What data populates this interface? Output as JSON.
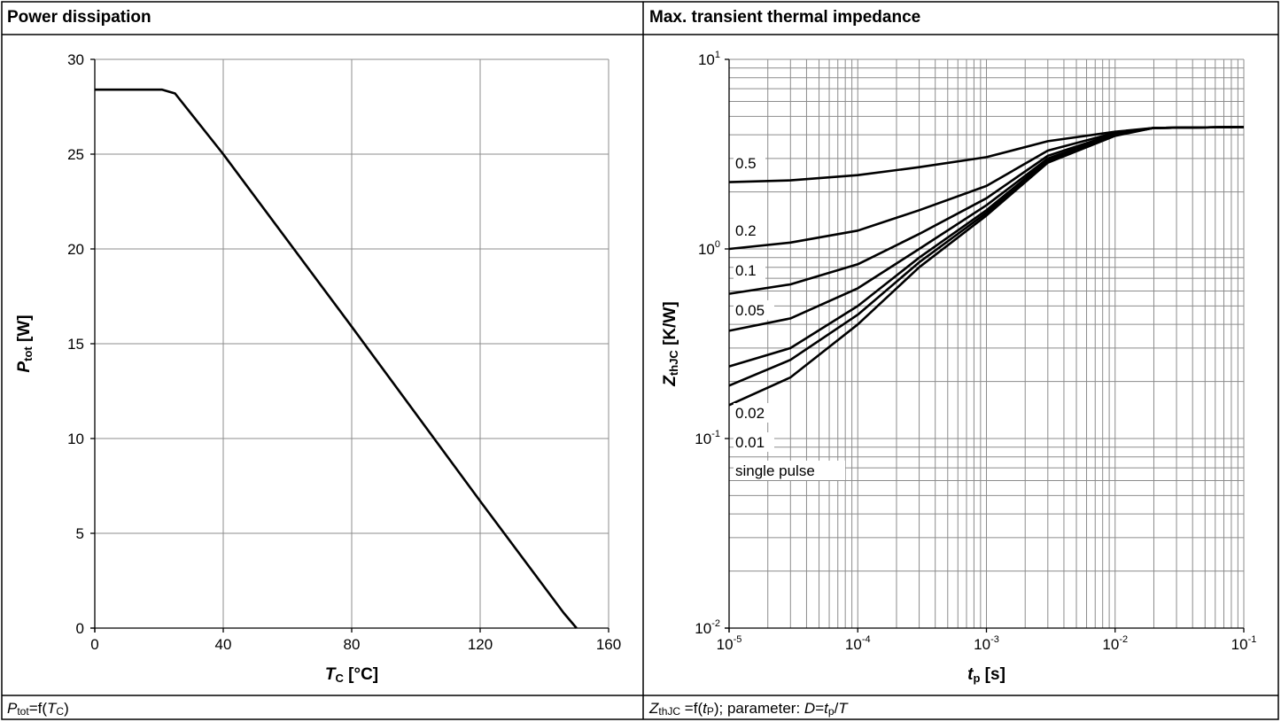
{
  "panels": {
    "left": {
      "title": "Power dissipation",
      "caption": {
        "p": "P",
        "tot": "tot",
        "mid": "=f(",
        "t": "T",
        "c": "C",
        "end": ")"
      }
    },
    "right": {
      "title": "Max. transient thermal impedance",
      "caption": {
        "z": "Z",
        "thjc": "thJC",
        "mid": " =f(",
        "t": "t",
        "p": "P",
        "param": "); parameter: ",
        "d": "D",
        "eq": "=",
        "t2": "t",
        "p2": "p",
        "slash": "/",
        "T": "T"
      }
    }
  },
  "chart_data": [
    {
      "type": "line",
      "title": "Power dissipation",
      "xlabel": {
        "main": "T",
        "sub": "C",
        "unit": " [°C]"
      },
      "ylabel": {
        "main": "P",
        "sub": "tot",
        "unit": " [W]"
      },
      "xlim": [
        0,
        160
      ],
      "ylim": [
        0,
        30
      ],
      "xticks": [
        0,
        40,
        80,
        120,
        160
      ],
      "yticks": [
        0,
        5,
        10,
        15,
        20,
        25,
        30
      ],
      "grid": true,
      "series": [
        {
          "x": [
            0,
            21,
            25,
            40,
            80,
            120,
            146,
            150
          ],
          "y": [
            28.4,
            28.4,
            28.2,
            25,
            15.9,
            6.7,
            0.8,
            0
          ]
        }
      ]
    },
    {
      "type": "line",
      "title": "Max. transient thermal impedance",
      "xscale": "log",
      "yscale": "log",
      "xlabel": {
        "main": "t",
        "sub": "p",
        "unit": " [s]"
      },
      "ylabel": {
        "main": "Z",
        "sub": "thJC",
        "unit": " [K/W]"
      },
      "xlim": [
        1e-05,
        0.1
      ],
      "ylim": [
        0.01,
        10
      ],
      "xticks": [
        {
          "v": 1e-05,
          "base": "10",
          "exp": "-5"
        },
        {
          "v": 0.0001,
          "base": "10",
          "exp": "-4"
        },
        {
          "v": 0.001,
          "base": "10",
          "exp": "-3"
        },
        {
          "v": 0.01,
          "base": "10",
          "exp": "-2"
        },
        {
          "v": 0.1,
          "base": "10",
          "exp": "-1"
        }
      ],
      "yticks": [
        {
          "v": 0.01,
          "base": "10",
          "exp": "-2"
        },
        {
          "v": 0.1,
          "base": "10",
          "exp": "-1"
        },
        {
          "v": 1,
          "base": "10",
          "exp": "0"
        },
        {
          "v": 10,
          "base": "10",
          "exp": "1"
        }
      ],
      "grid": true,
      "series": [
        {
          "name": "0.5",
          "x": [
            1e-05,
            3e-05,
            0.0001,
            0.0003,
            0.001,
            0.003,
            0.01,
            0.02,
            0.1
          ],
          "y": [
            2.25,
            2.3,
            2.45,
            2.7,
            3.05,
            3.7,
            4.15,
            4.35,
            4.4
          ]
        },
        {
          "name": "0.2",
          "x": [
            1e-05,
            3e-05,
            0.0001,
            0.0003,
            0.001,
            0.003,
            0.01,
            0.02,
            0.1
          ],
          "y": [
            1.0,
            1.08,
            1.25,
            1.6,
            2.15,
            3.3,
            4.1,
            4.35,
            4.4
          ]
        },
        {
          "name": "0.1",
          "x": [
            1e-05,
            3e-05,
            0.0001,
            0.0003,
            0.001,
            0.003,
            0.01,
            0.02,
            0.1
          ],
          "y": [
            0.58,
            0.65,
            0.83,
            1.2,
            1.85,
            3.1,
            4.05,
            4.35,
            4.4
          ]
        },
        {
          "name": "0.05",
          "x": [
            1e-05,
            3e-05,
            0.0001,
            0.0003,
            0.001,
            0.003,
            0.01,
            0.02,
            0.1
          ],
          "y": [
            0.37,
            0.43,
            0.62,
            1.0,
            1.7,
            3.0,
            4.0,
            4.35,
            4.4
          ]
        },
        {
          "name": "0.02",
          "x": [
            1e-05,
            3e-05,
            0.0001,
            0.0003,
            0.001,
            0.003,
            0.01,
            0.02,
            0.1
          ],
          "y": [
            0.24,
            0.3,
            0.5,
            0.9,
            1.6,
            2.95,
            4.0,
            4.35,
            4.4
          ]
        },
        {
          "name": "0.01",
          "x": [
            1e-05,
            3e-05,
            0.0001,
            0.0003,
            0.001,
            0.003,
            0.01,
            0.02,
            0.1
          ],
          "y": [
            0.19,
            0.26,
            0.45,
            0.85,
            1.55,
            2.9,
            4.0,
            4.35,
            4.4
          ]
        },
        {
          "name": "single pulse",
          "x": [
            1e-05,
            3e-05,
            0.0001,
            0.0003,
            0.001,
            0.003,
            0.01,
            0.02,
            0.1
          ],
          "y": [
            0.15,
            0.21,
            0.4,
            0.8,
            1.5,
            2.85,
            3.95,
            4.35,
            4.4
          ]
        }
      ]
    }
  ]
}
